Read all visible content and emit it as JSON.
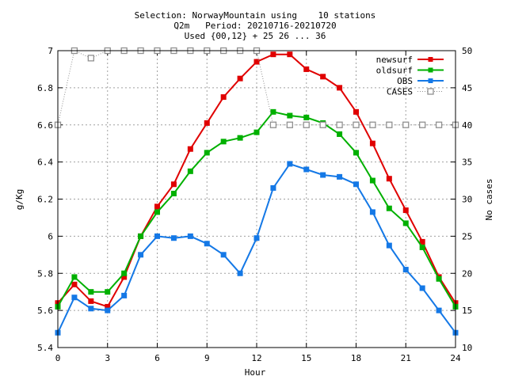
{
  "title_lines": [
    "Selection: NorwayMountain using    10 stations",
    "Q2m   Period: 20210716-20210720",
    "Used {00,12} + 25 26 ... 36"
  ],
  "chart_data": {
    "type": "line",
    "xlabel": "Hour",
    "ylabel": "g/Kg",
    "y2label": "No cases",
    "xlim": [
      0,
      24
    ],
    "ylim": [
      5.4,
      7.0
    ],
    "y2lim": [
      10,
      50
    ],
    "xticks": [
      0,
      3,
      6,
      9,
      12,
      15,
      18,
      21,
      24
    ],
    "yticks": [
      5.4,
      5.6,
      5.8,
      6.0,
      6.2,
      6.4,
      6.6,
      6.8,
      7.0
    ],
    "ytick_labels": [
      "5.4",
      "5.6",
      "5.8",
      "6",
      "6.2",
      "6.4",
      "6.6",
      "6.8",
      "7"
    ],
    "y2ticks": [
      10,
      15,
      20,
      25,
      30,
      35,
      40,
      45,
      50
    ],
    "grid": true,
    "legend_position": "top-right",
    "series": [
      {
        "name": "newsurf",
        "axis": "y",
        "color": "#e00000",
        "marker": "filled-square",
        "x": [
          0,
          1,
          2,
          3,
          4,
          5,
          6,
          7,
          8,
          9,
          10,
          11,
          12,
          13,
          14,
          15,
          16,
          17,
          18,
          19,
          20,
          21,
          22,
          23,
          24
        ],
        "values": [
          5.64,
          5.74,
          5.65,
          5.62,
          5.78,
          6.0,
          6.16,
          6.28,
          6.47,
          6.61,
          6.75,
          6.85,
          6.94,
          6.98,
          6.98,
          6.9,
          6.86,
          6.8,
          6.67,
          6.5,
          6.31,
          6.14,
          5.97,
          5.78,
          5.64
        ]
      },
      {
        "name": "oldsurf",
        "axis": "y",
        "color": "#00b000",
        "marker": "filled-square",
        "x": [
          0,
          1,
          2,
          3,
          4,
          5,
          6,
          7,
          8,
          9,
          10,
          11,
          12,
          13,
          14,
          15,
          16,
          17,
          18,
          19,
          20,
          21,
          22,
          23,
          24
        ],
        "values": [
          5.62,
          5.78,
          5.7,
          5.7,
          5.8,
          6.0,
          6.13,
          6.23,
          6.35,
          6.45,
          6.51,
          6.53,
          6.56,
          6.67,
          6.65,
          6.64,
          6.61,
          6.55,
          6.45,
          6.3,
          6.15,
          6.07,
          5.94,
          5.77,
          5.62
        ]
      },
      {
        "name": "OBS",
        "axis": "y",
        "color": "#1478e6",
        "marker": "filled-square",
        "x": [
          0,
          1,
          2,
          3,
          4,
          5,
          6,
          7,
          8,
          9,
          10,
          11,
          12,
          13,
          14,
          15,
          16,
          17,
          18,
          19,
          20,
          21,
          22,
          23,
          24
        ],
        "values": [
          5.48,
          5.67,
          5.61,
          5.6,
          5.68,
          5.9,
          6.0,
          5.99,
          6.0,
          5.96,
          5.9,
          5.8,
          5.99,
          6.26,
          6.39,
          6.36,
          6.33,
          6.32,
          6.28,
          6.13,
          5.95,
          5.82,
          5.72,
          5.6,
          5.48
        ]
      },
      {
        "name": "CASES",
        "axis": "y2",
        "color": "#909090",
        "marker": "open-square",
        "dashed": true,
        "x": [
          0,
          1,
          2,
          3,
          4,
          5,
          6,
          7,
          8,
          9,
          10,
          11,
          12,
          13,
          14,
          15,
          16,
          17,
          18,
          19,
          20,
          21,
          22,
          23,
          24
        ],
        "values": [
          40,
          50,
          49,
          50,
          50,
          50,
          50,
          50,
          50,
          50,
          50,
          50,
          50,
          40,
          40,
          40,
          40,
          40,
          40,
          40,
          40,
          40,
          40,
          40,
          40
        ]
      }
    ]
  }
}
